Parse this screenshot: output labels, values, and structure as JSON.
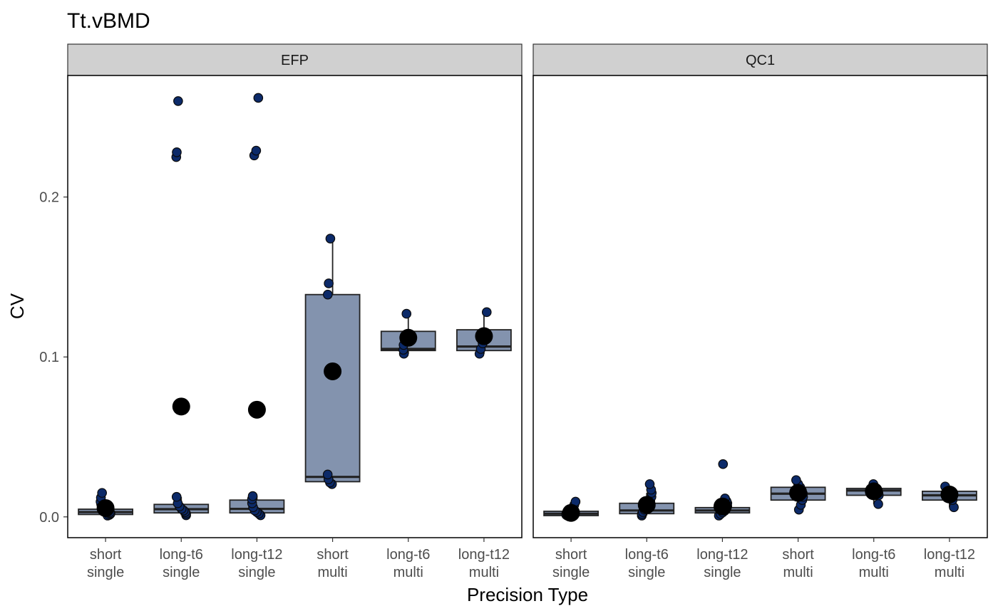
{
  "chart_data": {
    "type": "box",
    "title": "Tt.vBMD",
    "xlabel": "Precision Type",
    "ylabel": "CV",
    "ylim": [
      -0.013,
      0.276
    ],
    "yticks": [
      "0.0",
      "0.1",
      "0.2"
    ],
    "grid": false,
    "categories": [
      [
        "short",
        "single"
      ],
      [
        "long-t6",
        "single"
      ],
      [
        "long-t12",
        "single"
      ],
      [
        "short",
        "multi"
      ],
      [
        "long-t6",
        "multi"
      ],
      [
        "long-t12",
        "multi"
      ]
    ],
    "colors": {
      "box_fill": "#8393ae",
      "point_fill": "#0c2a69",
      "mean_fill": "#000000",
      "strip_fill": "#d0d0d0"
    },
    "panels": [
      {
        "name": "EFP",
        "boxes": [
          {
            "q1": 0.0015,
            "median": 0.003,
            "q3": 0.0048,
            "whisker_low": 0.0008,
            "whisker_high": 0.0095,
            "mean": 0.0055,
            "points": [
              0.0008,
              0.0012,
              0.0018,
              0.0024,
              0.003,
              0.0036,
              0.0044,
              0.0055,
              0.0068,
              0.008,
              0.0095,
              0.012,
              0.015
            ]
          },
          {
            "q1": 0.0025,
            "median": 0.0048,
            "q3": 0.0078,
            "whisker_low": 0.001,
            "whisker_high": 0.0125,
            "mean": 0.069,
            "points": [
              0.001,
              0.002,
              0.003,
              0.004,
              0.005,
              0.0065,
              0.0085,
              0.0125,
              0.225,
              0.228,
              0.26
            ]
          },
          {
            "q1": 0.0025,
            "median": 0.005,
            "q3": 0.0105,
            "whisker_low": 0.001,
            "whisker_high": 0.013,
            "mean": 0.067,
            "points": [
              0.001,
              0.002,
              0.003,
              0.004,
              0.006,
              0.0085,
              0.011,
              0.013,
              0.226,
              0.229,
              0.262
            ]
          },
          {
            "q1": 0.022,
            "median": 0.025,
            "q3": 0.139,
            "whisker_low": 0.021,
            "whisker_high": 0.174,
            "mean": 0.091,
            "points": [
              0.0205,
              0.0215,
              0.0235,
              0.0265,
              0.139,
              0.146,
              0.174
            ]
          },
          {
            "q1": 0.104,
            "median": 0.105,
            "q3": 0.116,
            "whisker_low": 0.102,
            "whisker_high": 0.127,
            "mean": 0.112,
            "points": [
              0.102,
              0.1045,
              0.1075,
              0.113,
              0.127
            ]
          },
          {
            "q1": 0.104,
            "median": 0.1065,
            "q3": 0.117,
            "whisker_low": 0.102,
            "whisker_high": 0.128,
            "mean": 0.113,
            "points": [
              0.102,
              0.105,
              0.1085,
              0.114,
              0.128
            ]
          }
        ]
      },
      {
        "name": "QC1",
        "boxes": [
          {
            "q1": 0.0008,
            "median": 0.002,
            "q3": 0.0035,
            "whisker_low": 0.0003,
            "whisker_high": 0.0075,
            "mean": 0.0025,
            "points": [
              0.0003,
              0.0008,
              0.0012,
              0.0018,
              0.0024,
              0.003,
              0.004,
              0.0052,
              0.0075,
              0.0095
            ]
          },
          {
            "q1": 0.002,
            "median": 0.004,
            "q3": 0.0085,
            "whisker_low": 0.0008,
            "whisker_high": 0.015,
            "mean": 0.0075,
            "points": [
              0.0008,
              0.0018,
              0.003,
              0.0045,
              0.006,
              0.008,
              0.0105,
              0.0125,
              0.015,
              0.017,
              0.0205
            ]
          },
          {
            "q1": 0.0025,
            "median": 0.004,
            "q3": 0.0058,
            "whisker_low": 0.0008,
            "whisker_high": 0.0098,
            "mean": 0.0065,
            "points": [
              0.0008,
              0.0018,
              0.0028,
              0.0038,
              0.005,
              0.0065,
              0.0085,
              0.0098,
              0.0115,
              0.033
            ]
          },
          {
            "q1": 0.0105,
            "median": 0.0145,
            "q3": 0.0185,
            "whisker_low": 0.0045,
            "whisker_high": 0.023,
            "mean": 0.015,
            "points": [
              0.0045,
              0.0075,
              0.0105,
              0.0125,
              0.0145,
              0.0165,
              0.0185,
              0.0205,
              0.023
            ]
          },
          {
            "q1": 0.0135,
            "median": 0.0165,
            "q3": 0.0178,
            "whisker_low": 0.008,
            "whisker_high": 0.0205,
            "mean": 0.016,
            "points": [
              0.008,
              0.0135,
              0.015,
              0.0165,
              0.0178,
              0.0205
            ]
          },
          {
            "q1": 0.0105,
            "median": 0.0135,
            "q3": 0.016,
            "whisker_low": 0.006,
            "whisker_high": 0.019,
            "mean": 0.014,
            "points": [
              0.006,
              0.0105,
              0.0125,
              0.0145,
              0.016,
              0.019
            ]
          }
        ]
      }
    ]
  }
}
